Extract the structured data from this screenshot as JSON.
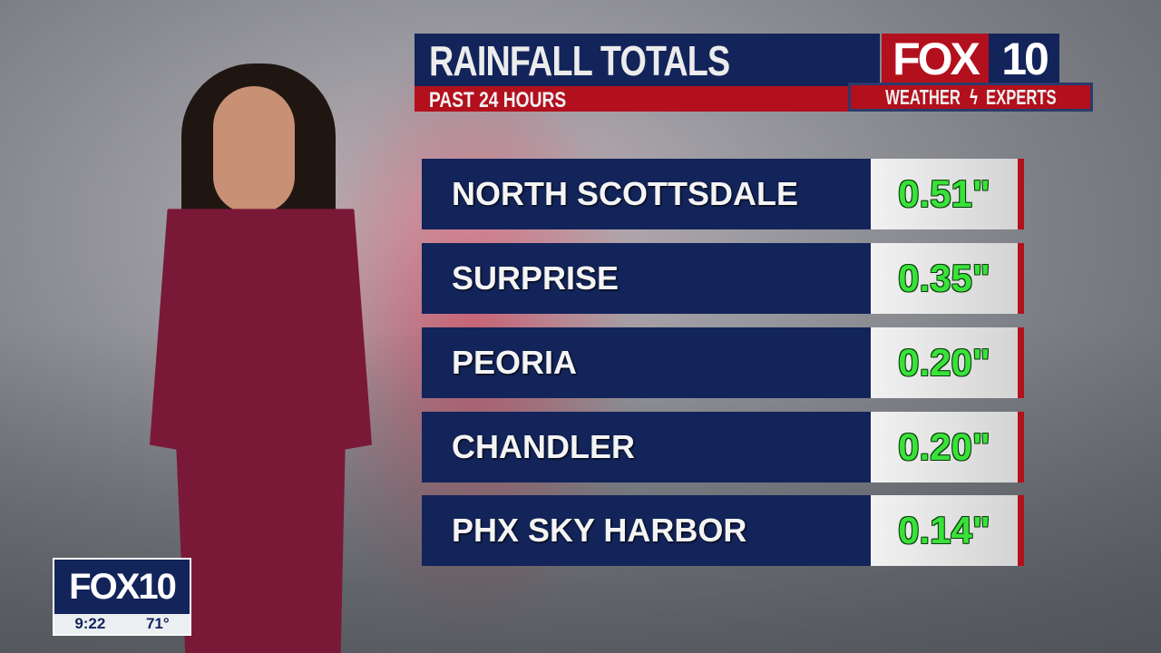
{
  "header": {
    "title": "RAINFALL TOTALS",
    "subtitle": "PAST 24 HOURS"
  },
  "logo": {
    "fox": "FOX",
    "number": "10",
    "tagline_left": "WEATHER",
    "tagline_right": "EXPERTS",
    "tagline_icon": "lightning-bolt-icon"
  },
  "rainfall": [
    {
      "location": "NORTH SCOTTSDALE",
      "amount": "0.51\""
    },
    {
      "location": "SURPRISE",
      "amount": "0.35\""
    },
    {
      "location": "PEORIA",
      "amount": "0.20\""
    },
    {
      "location": "CHANDLER",
      "amount": "0.20\""
    },
    {
      "location": "PHX SKY HARBOR",
      "amount": "0.14\""
    }
  ],
  "bug": {
    "station": "FOX10",
    "time": "9:22",
    "temperature": "71°"
  },
  "colors": {
    "navy": "#13245a",
    "red": "#b3101d",
    "value_green": "#39e23a"
  }
}
